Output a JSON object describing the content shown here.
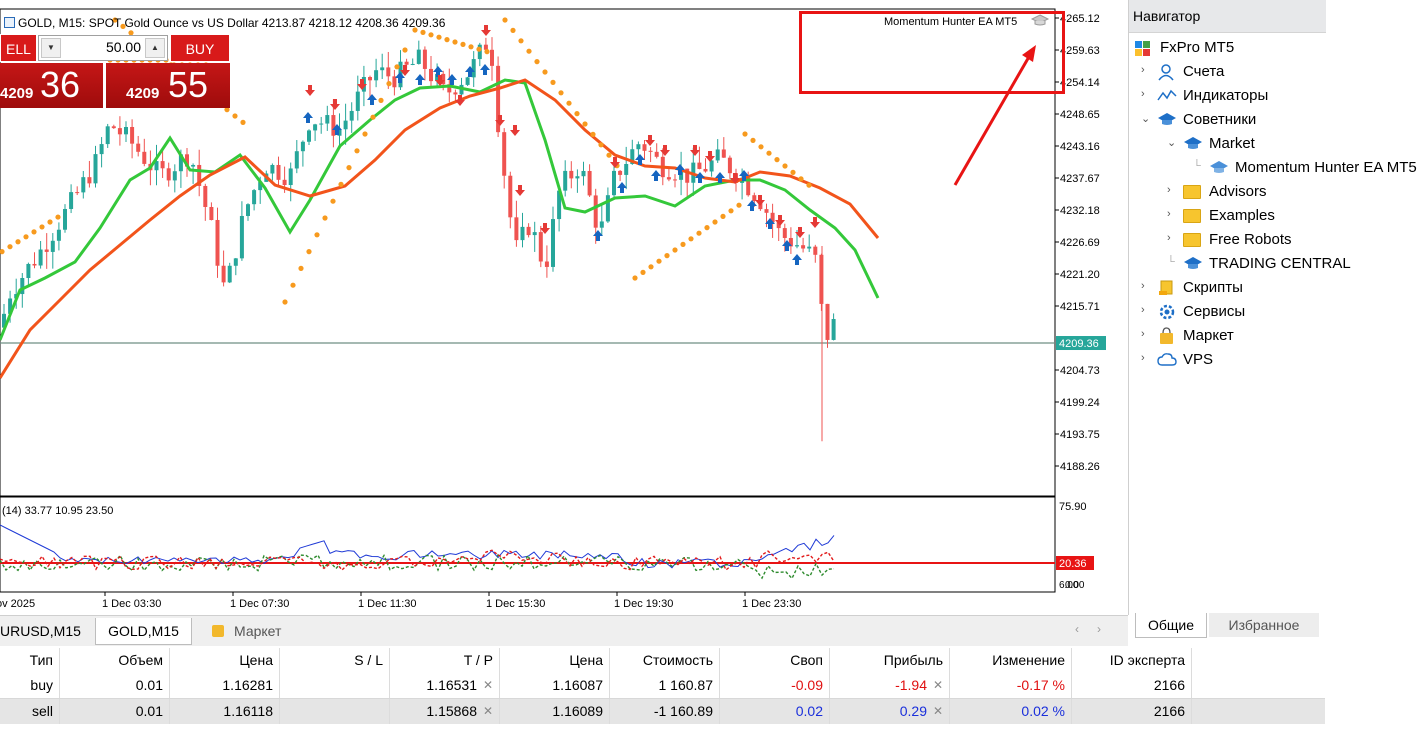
{
  "chart": {
    "symbol_title": "GOLD, M15:  SPOT Gold Ounce vs US Dollar  4213.87 4218.12 4208.36 4209.36",
    "ea_label": "Momentum Hunter EA MT5",
    "current_price": "4209.36",
    "price_axis": [
      "4265.12",
      "4259.63",
      "4254.14",
      "4248.65",
      "4243.16",
      "4237.67",
      "4232.18",
      "4226.69",
      "4221.20",
      "4215.71",
      "4204.73",
      "4199.24",
      "4193.75",
      "4188.26"
    ],
    "time_axis": [
      "ov 2025",
      "1 Dec 03:30",
      "1 Dec 07:30",
      "1 Dec 11:30",
      "1 Dec 15:30",
      "1 Dec 19:30",
      "1 Dec 23:30"
    ],
    "indicator_label": "(14) 33.77 10.95 23.50",
    "indicator_axis": [
      "75.90",
      "20.36",
      "6.00",
      "0.00"
    ],
    "colors": {
      "bull": "#26a69a",
      "bear": "#ef5350",
      "fast_ma": "#34c83a",
      "slow_ma": "#f2541b",
      "sar": "#f79a1e",
      "annotation": "#e81414"
    }
  },
  "trade_panel": {
    "sell_label": "ELL",
    "buy_label": "BUY",
    "lot": "50.00",
    "sell_small": "4209",
    "sell_big": "36",
    "buy_small": "4209",
    "buy_big": "55"
  },
  "navigator": {
    "title": "Навигатор",
    "items": [
      {
        "label": "FxPro MT5"
      },
      {
        "label": "Счета"
      },
      {
        "label": "Индикаторы"
      },
      {
        "label": "Советники"
      },
      {
        "label": "Market"
      },
      {
        "label": "Momentum Hunter EA MT5"
      },
      {
        "label": "Advisors"
      },
      {
        "label": "Examples"
      },
      {
        "label": "Free Robots"
      },
      {
        "label": "TRADING CENTRAL"
      },
      {
        "label": "Скрипты"
      },
      {
        "label": "Сервисы"
      },
      {
        "label": "Маркет"
      },
      {
        "label": "VPS"
      }
    ],
    "tabs": [
      "Общие",
      "Избранное"
    ]
  },
  "chart_tabs": [
    "URUSD,M15",
    "GOLD,M15",
    "Маркет"
  ],
  "trades": {
    "headers": [
      "Тип",
      "Объем",
      "Цена",
      "S / L",
      "T / P",
      "Цена",
      "Стоимость",
      "Своп",
      "Прибыль",
      "Изменение",
      "ID эксперта"
    ],
    "rows": [
      [
        "buy",
        "0.01",
        "1.16281",
        "",
        "1.16531",
        "1.16087",
        "1 160.87",
        "-0.09",
        "-1.94",
        "-0.17 %",
        "2166"
      ],
      [
        "sell",
        "0.01",
        "1.16118",
        "",
        "1.15868",
        "1.16089",
        "-1 160.89",
        "0.02",
        "0.29",
        "0.02 %",
        "2166"
      ]
    ]
  }
}
